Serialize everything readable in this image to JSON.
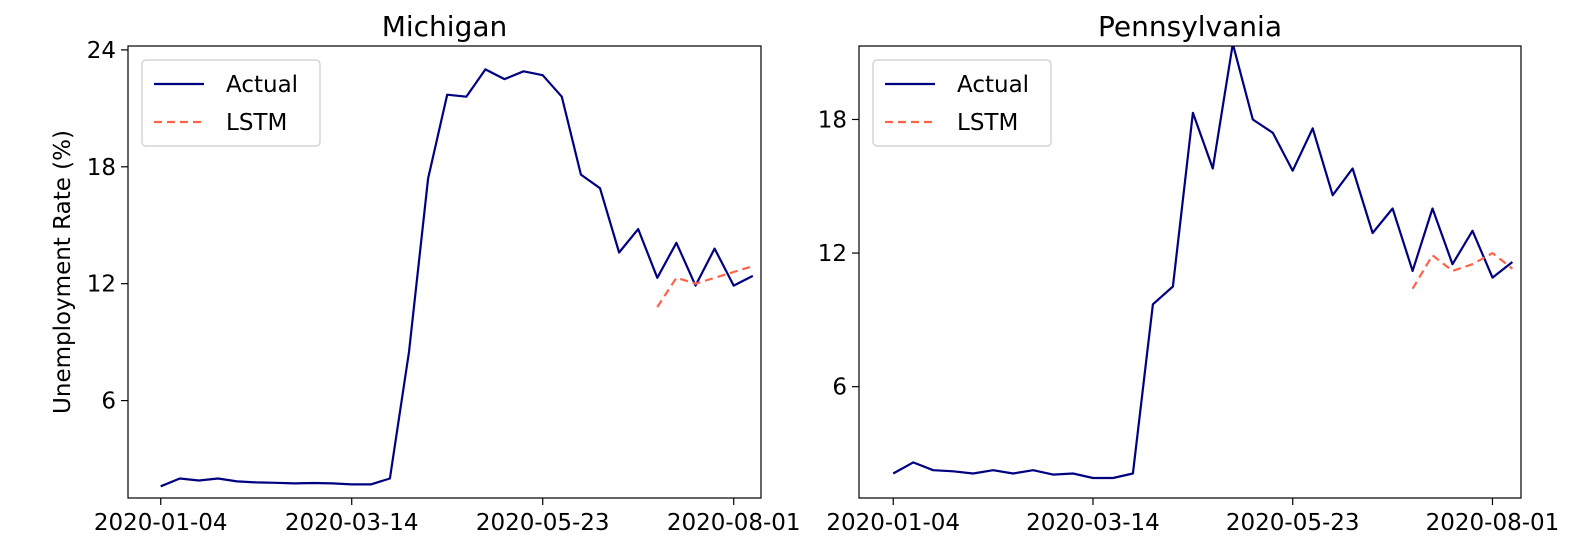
{
  "chart_data": [
    {
      "type": "line",
      "title": "Michigan",
      "xlabel": "",
      "ylabel": "Unemployment Rate (%)",
      "ylim": [
        1.0,
        24.2
      ],
      "xlim": [
        "2019-12-23",
        "2020-08-11"
      ],
      "x_ticks": [
        "2020-01-04",
        "2020-03-14",
        "2020-05-23",
        "2020-08-01"
      ],
      "y_ticks": [
        6,
        12,
        18,
        24
      ],
      "legend": {
        "position": "top-left",
        "entries": [
          "Actual",
          "LSTM"
        ]
      },
      "grid": false,
      "series": [
        {
          "name": "Actual",
          "color": "#000080",
          "style": "solid",
          "x": [
            "2020-01-04",
            "2020-01-11",
            "2020-01-18",
            "2020-01-25",
            "2020-02-01",
            "2020-02-08",
            "2020-02-15",
            "2020-02-22",
            "2020-02-29",
            "2020-03-07",
            "2020-03-14",
            "2020-03-21",
            "2020-03-28",
            "2020-04-04",
            "2020-04-11",
            "2020-04-18",
            "2020-04-25",
            "2020-05-02",
            "2020-05-09",
            "2020-05-16",
            "2020-05-23",
            "2020-05-30",
            "2020-06-06",
            "2020-06-13",
            "2020-06-20",
            "2020-06-27",
            "2020-07-04",
            "2020-07-11",
            "2020-07-18",
            "2020-07-25",
            "2020-08-01",
            "2020-08-08"
          ],
          "values": [
            1.6,
            2.0,
            1.9,
            2.0,
            1.85,
            1.8,
            1.78,
            1.75,
            1.77,
            1.75,
            1.7,
            1.7,
            2.0,
            8.5,
            17.4,
            21.7,
            21.6,
            23.0,
            22.5,
            22.9,
            22.7,
            21.6,
            17.6,
            16.9,
            13.6,
            14.8,
            12.3,
            14.1,
            11.9,
            13.8,
            11.9,
            12.4
          ]
        },
        {
          "name": "LSTM",
          "color": "#ff6347",
          "style": "dashed",
          "x": [
            "2020-07-04",
            "2020-07-11",
            "2020-07-18",
            "2020-07-25",
            "2020-08-01",
            "2020-08-08"
          ],
          "values": [
            10.8,
            12.3,
            12.0,
            12.3,
            12.6,
            12.9
          ]
        }
      ]
    },
    {
      "type": "line",
      "title": "Pennsylvania",
      "xlabel": "",
      "ylabel": "",
      "ylim": [
        1.0,
        21.3
      ],
      "xlim": [
        "2019-12-23",
        "2020-08-11"
      ],
      "x_ticks": [
        "2020-01-04",
        "2020-03-14",
        "2020-05-23",
        "2020-08-01"
      ],
      "y_ticks": [
        6,
        12,
        18
      ],
      "legend": {
        "position": "top-left",
        "entries": [
          "Actual",
          "LSTM"
        ]
      },
      "grid": false,
      "series": [
        {
          "name": "Actual",
          "color": "#000080",
          "style": "solid",
          "x": [
            "2020-01-04",
            "2020-01-11",
            "2020-01-18",
            "2020-01-25",
            "2020-02-01",
            "2020-02-08",
            "2020-02-15",
            "2020-02-22",
            "2020-02-29",
            "2020-03-07",
            "2020-03-14",
            "2020-03-21",
            "2020-03-28",
            "2020-04-04",
            "2020-04-11",
            "2020-04-18",
            "2020-04-25",
            "2020-05-02",
            "2020-05-09",
            "2020-05-16",
            "2020-05-23",
            "2020-05-30",
            "2020-06-06",
            "2020-06-13",
            "2020-06-20",
            "2020-06-27",
            "2020-07-04",
            "2020-07-11",
            "2020-07-18",
            "2020-07-25",
            "2020-08-01",
            "2020-08-08"
          ],
          "values": [
            2.1,
            2.6,
            2.25,
            2.2,
            2.1,
            2.25,
            2.1,
            2.25,
            2.05,
            2.1,
            1.9,
            1.9,
            2.1,
            9.7,
            10.5,
            18.3,
            15.8,
            21.4,
            18.0,
            17.4,
            15.7,
            17.6,
            14.6,
            15.8,
            12.9,
            14.0,
            11.2,
            14.0,
            11.5,
            13.0,
            10.9,
            11.6
          ]
        },
        {
          "name": "LSTM",
          "color": "#ff6347",
          "style": "dashed",
          "x": [
            "2020-07-04",
            "2020-07-11",
            "2020-07-18",
            "2020-07-25",
            "2020-08-01",
            "2020-08-08"
          ],
          "values": [
            10.4,
            11.9,
            11.2,
            11.5,
            12.0,
            11.3
          ]
        }
      ]
    }
  ]
}
